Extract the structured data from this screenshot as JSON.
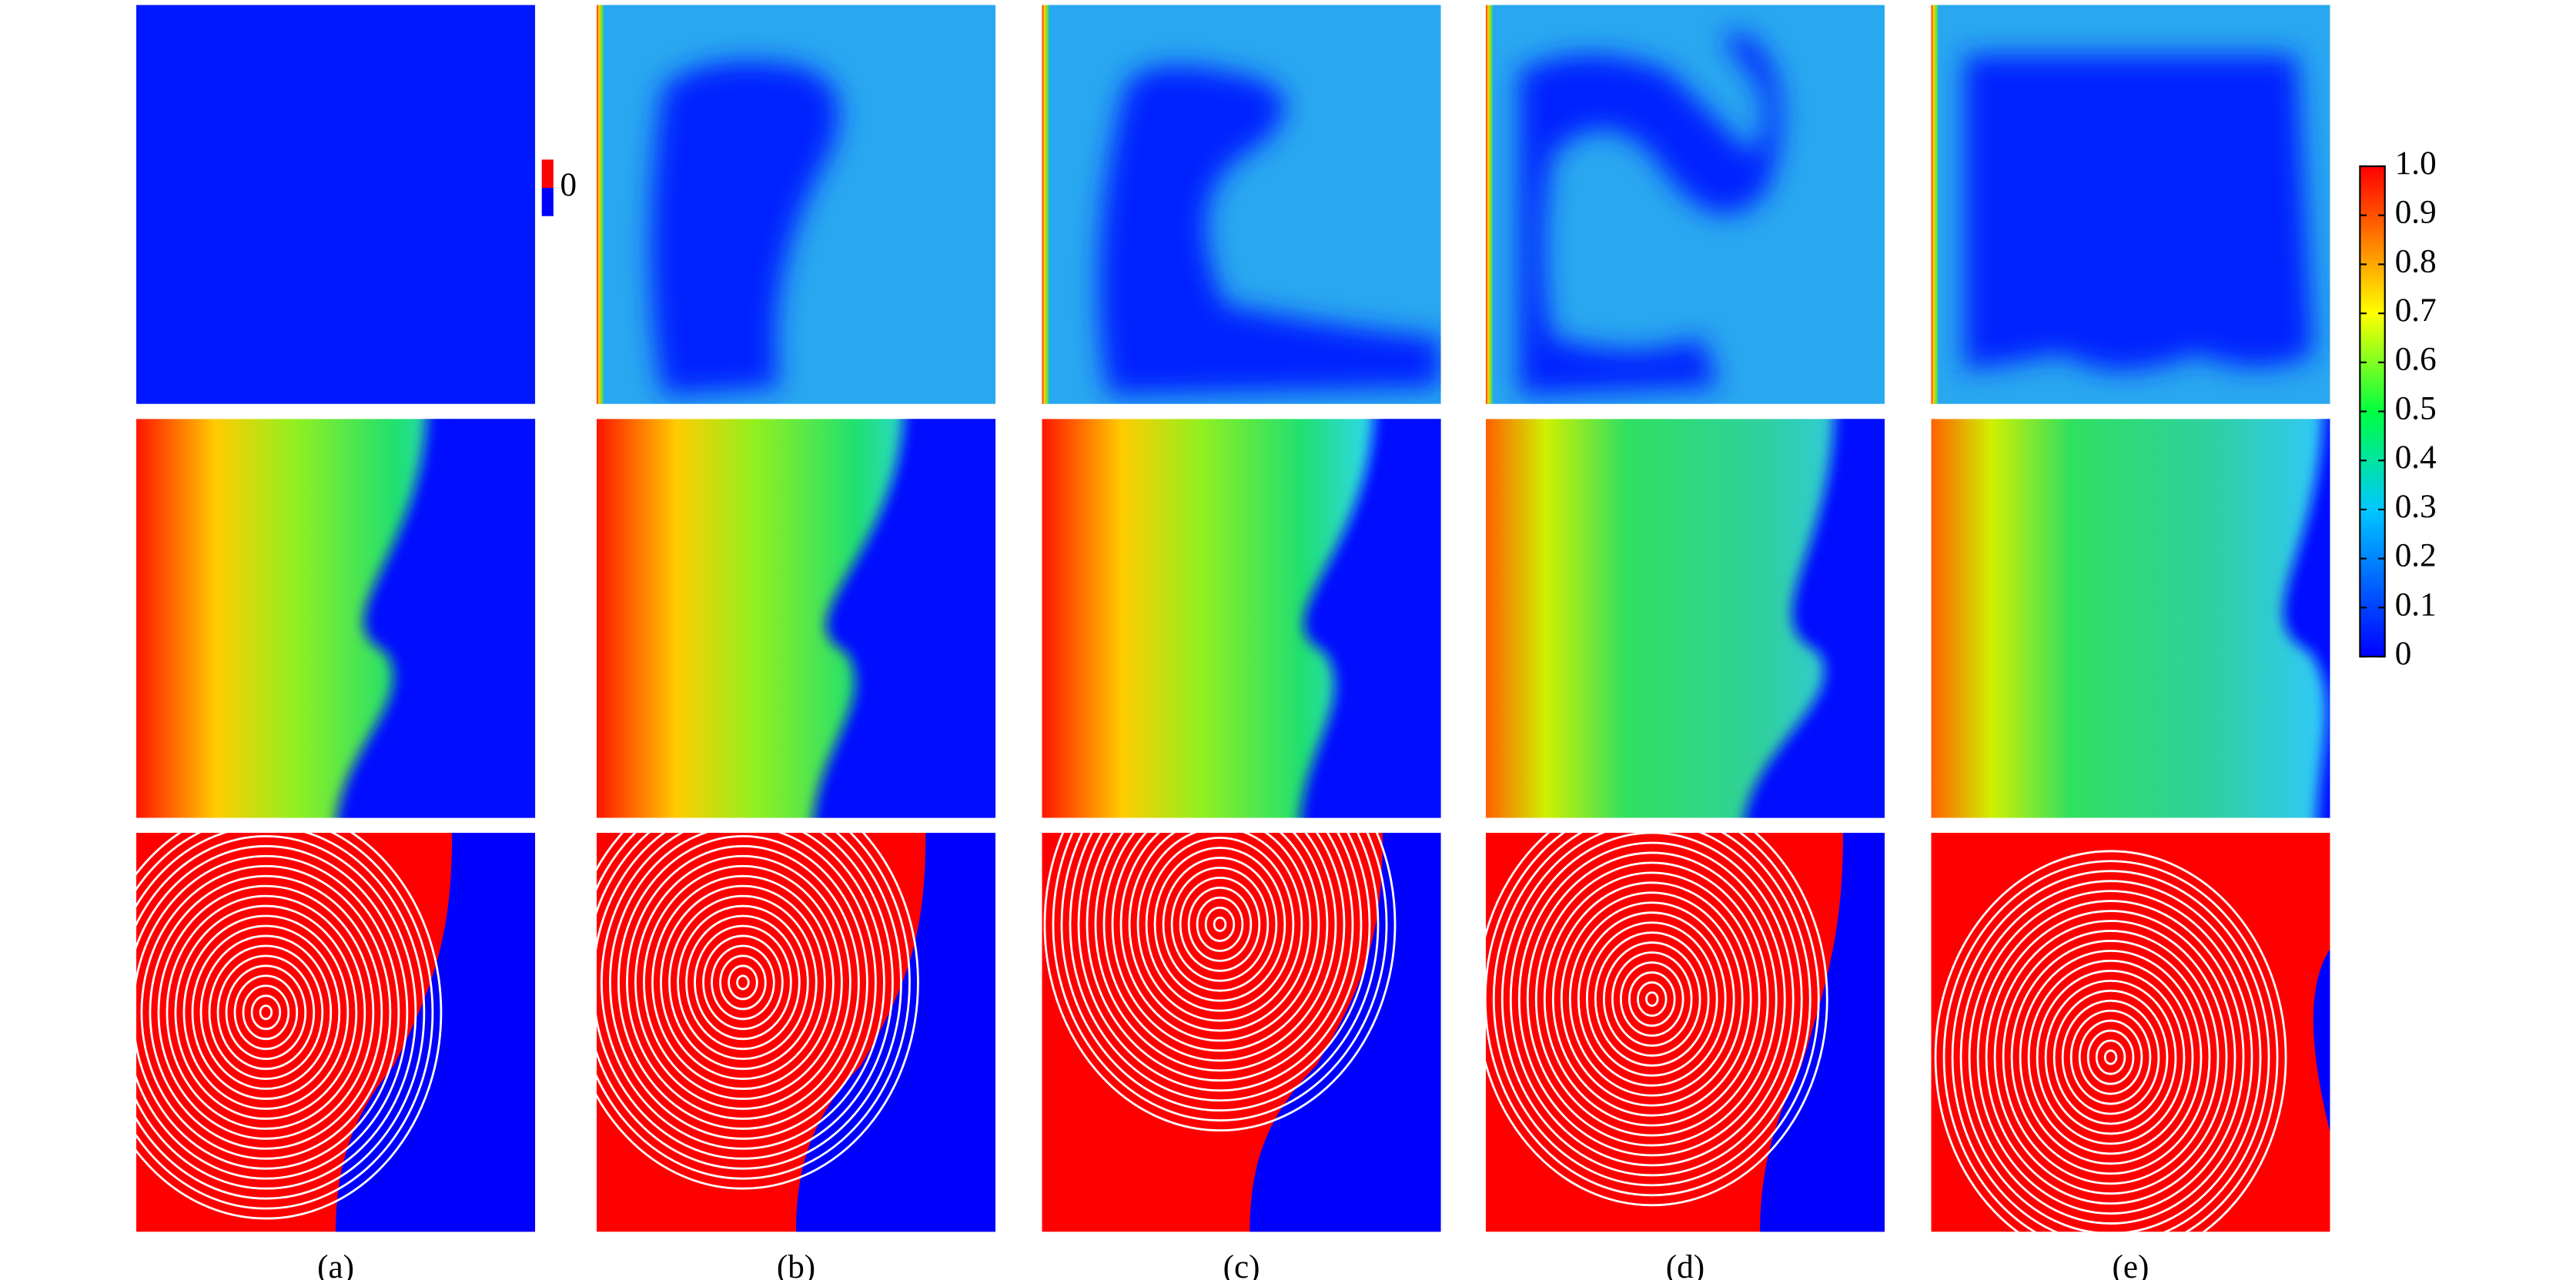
{
  "panels": [
    "(a)",
    "(b)",
    "(c)",
    "(d)",
    "(e)"
  ],
  "small_legend": {
    "label": "0"
  },
  "colorbar": {
    "ticks": [
      0,
      0.1,
      0.2,
      0.3,
      0.4,
      0.5,
      0.6,
      0.7,
      0.8,
      0.9,
      {
        "value": 1,
        "label": "1.0"
      }
    ]
  }
}
